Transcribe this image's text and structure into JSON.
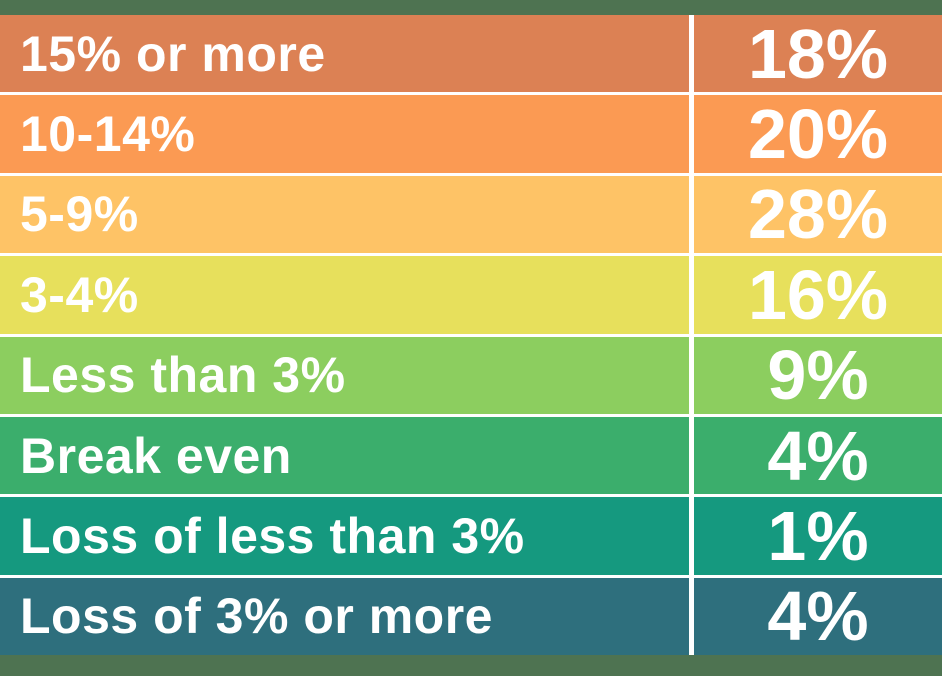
{
  "page": {
    "background_color": "#4E7351",
    "divider_color": "#FFFFFF",
    "text_color": "#FFFFFF"
  },
  "table": {
    "rows": [
      {
        "label": "15% or more",
        "value_label": "18%",
        "value": 18,
        "color": "#DC8154"
      },
      {
        "label": "10-14%",
        "value_label": "20%",
        "value": 20,
        "color": "#FB9A53"
      },
      {
        "label": "5-9%",
        "value_label": "28%",
        "value": 28,
        "color": "#FEC366"
      },
      {
        "label": "3-4%",
        "value_label": "16%",
        "value": 16,
        "color": "#E7E05C"
      },
      {
        "label": "Less than 3%",
        "value_label": "9%",
        "value": 9,
        "color": "#8CCE5F"
      },
      {
        "label": "Break even",
        "value_label": "4%",
        "value": 4,
        "color": "#3BAE6C"
      },
      {
        "label": "Loss of less than 3%",
        "value_label": "1%",
        "value": 1,
        "color": "#15997F"
      },
      {
        "label": "Loss of 3% or more",
        "value_label": "4%",
        "value": 4,
        "color": "#2E6F7D"
      }
    ]
  },
  "chart_data": {
    "type": "table",
    "categories": [
      "15% or more",
      "10-14%",
      "5-9%",
      "3-4%",
      "Less than 3%",
      "Break even",
      "Loss of less than 3%",
      "Loss of 3% or more"
    ],
    "values": [
      18,
      20,
      28,
      16,
      9,
      4,
      1,
      4
    ],
    "unit": "%",
    "row_colors": [
      "#DC8154",
      "#FB9A53",
      "#FEC366",
      "#E7E05C",
      "#8CCE5F",
      "#3BAE6C",
      "#15997F",
      "#2E6F7D"
    ],
    "layout": "two-column category/value table, white row dividers, color gradient from orange (gain) to teal (loss)"
  }
}
